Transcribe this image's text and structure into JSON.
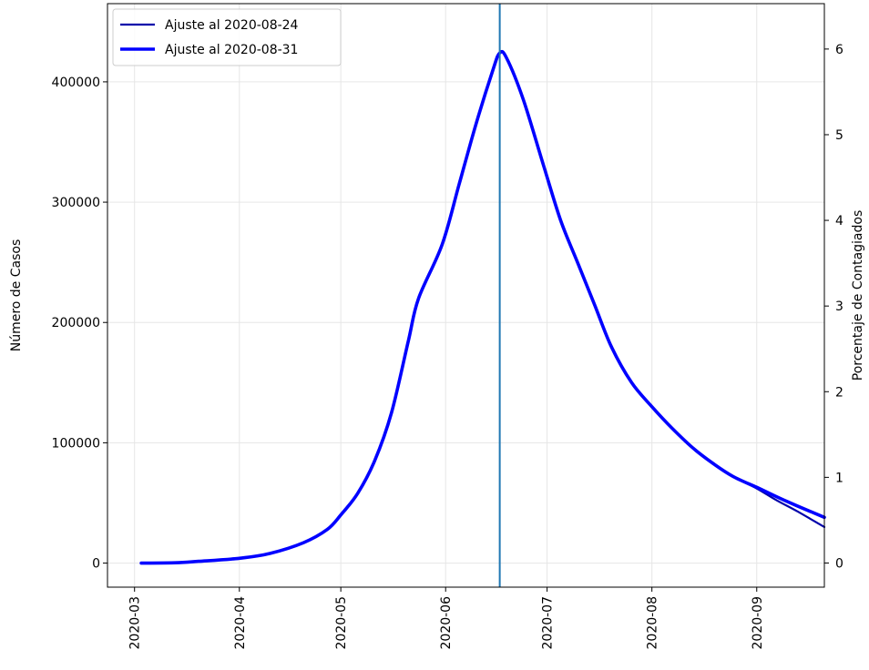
{
  "chart_data": {
    "type": "line",
    "title": "",
    "xlabel": "",
    "ylabel": "Número de Casos",
    "ylabel_right": "Porcentaje de Contagiados",
    "xlim": [
      "2020-02-22",
      "2020-09-21"
    ],
    "ylim": [
      -20000,
      465000
    ],
    "ylim_right": [
      -0.282,
      6.53
    ],
    "x_ticks": [
      "2020-03",
      "2020-04",
      "2020-05",
      "2020-06",
      "2020-07",
      "2020-08",
      "2020-09"
    ],
    "y_ticks": [
      "0",
      "100000",
      "200000",
      "300000",
      "400000"
    ],
    "y_ticks_right": [
      "0",
      "1",
      "2",
      "3",
      "4",
      "5",
      "6"
    ],
    "grid": true,
    "legend_position": "top-left",
    "vline_x": "2020-06-17",
    "vline_color": "#1f77b4",
    "series": [
      {
        "name": "Ajuste al 2020-08-24",
        "color": "#0000aa",
        "width": "thin",
        "x": [
          "2020-03-03",
          "2020-03-13",
          "2020-03-20",
          "2020-04-01",
          "2020-04-10",
          "2020-04-20",
          "2020-04-27",
          "2020-05-01",
          "2020-05-06",
          "2020-05-11",
          "2020-05-16",
          "2020-05-21",
          "2020-05-24",
          "2020-05-31",
          "2020-06-05",
          "2020-06-10",
          "2020-06-15",
          "2020-06-17",
          "2020-06-19",
          "2020-06-24",
          "2020-06-30",
          "2020-07-05",
          "2020-07-10",
          "2020-07-15",
          "2020-07-20",
          "2020-07-26",
          "2020-08-01",
          "2020-08-07",
          "2020-08-13",
          "2020-08-19",
          "2020-08-25",
          "2020-09-01",
          "2020-09-07",
          "2020-09-13",
          "2020-09-21"
        ],
        "values": [
          0,
          300,
          1500,
          4000,
          8000,
          17000,
          28000,
          40000,
          58000,
          85000,
          125000,
          185000,
          220000,
          265000,
          315000,
          365000,
          410000,
          424000,
          420000,
          385000,
          330000,
          285000,
          250000,
          215000,
          180000,
          150000,
          130000,
          112000,
          96000,
          83000,
          72000,
          62000,
          52000,
          43000,
          30000
        ]
      },
      {
        "name": "Ajuste al 2020-08-31",
        "color": "#0000ff",
        "width": "thick",
        "x": [
          "2020-03-03",
          "2020-03-13",
          "2020-03-20",
          "2020-04-01",
          "2020-04-10",
          "2020-04-20",
          "2020-04-27",
          "2020-05-01",
          "2020-05-06",
          "2020-05-11",
          "2020-05-16",
          "2020-05-21",
          "2020-05-24",
          "2020-05-31",
          "2020-06-05",
          "2020-06-10",
          "2020-06-15",
          "2020-06-17",
          "2020-06-19",
          "2020-06-24",
          "2020-06-30",
          "2020-07-05",
          "2020-07-10",
          "2020-07-15",
          "2020-07-20",
          "2020-07-26",
          "2020-08-01",
          "2020-08-07",
          "2020-08-13",
          "2020-08-19",
          "2020-08-25",
          "2020-09-01",
          "2020-09-07",
          "2020-09-13",
          "2020-09-21"
        ],
        "values": [
          0,
          300,
          1500,
          4000,
          8000,
          17000,
          28000,
          40000,
          58000,
          85000,
          125000,
          185000,
          220000,
          265000,
          315000,
          365000,
          410000,
          424000,
          420000,
          385000,
          330000,
          285000,
          250000,
          215000,
          180000,
          150000,
          130000,
          112000,
          96000,
          83000,
          72000,
          63000,
          55000,
          47500,
          38000
        ]
      }
    ]
  }
}
